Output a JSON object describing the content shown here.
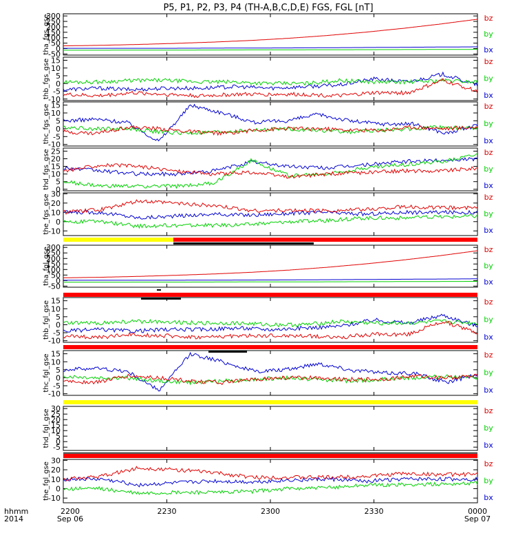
{
  "title": "P5, P1, P2, P3, P4 (TH-A,B,C,D,E) FGS, FGL [nT]",
  "colors": {
    "bz": "#e00000",
    "by": "#00d000",
    "bx": "#0000d0",
    "axis": "#000000",
    "yellow": "#ffff00",
    "red": "#ff0000"
  },
  "legend": [
    "bz",
    "by",
    "bx"
  ],
  "x_axis": {
    "ticks": [
      {
        "top": "2200",
        "bottom": "Sep 06"
      },
      {
        "top": "2230",
        "bottom": ""
      },
      {
        "top": "2300",
        "bottom": ""
      },
      {
        "top": "2330",
        "bottom": ""
      },
      {
        "top": "0000",
        "bottom": "Sep 07"
      }
    ],
    "left_label_top": "hhmm",
    "left_label_bottom": "2014"
  },
  "chart_data": [
    {
      "type": "line",
      "ylabel": "tha_fgs_gse",
      "ticks": [
        300,
        250,
        200,
        150,
        100,
        50,
        0,
        -50
      ],
      "ylim": [
        -60,
        320
      ],
      "series": [
        {
          "name": "bx",
          "values": [
            3,
            3,
            3,
            3,
            4,
            5,
            6,
            8,
            10,
            12,
            14,
            16
          ]
        },
        {
          "name": "by",
          "values": [
            -15,
            -15,
            -14,
            -14,
            -13,
            -12,
            -12,
            -11,
            -10,
            -9,
            -8,
            -7
          ]
        },
        {
          "name": "bz",
          "values": [
            25,
            30,
            38,
            48,
            60,
            75,
            95,
            120,
            150,
            185,
            225,
            270
          ]
        }
      ]
    },
    {
      "type": "line",
      "ylabel": "thb_fgs_gse",
      "ticks": [
        15,
        10,
        5,
        0,
        -5,
        -10
      ],
      "ylim": [
        -11,
        17
      ],
      "series": [
        {
          "name": "bx",
          "values": [
            -4,
            -3,
            -4,
            -3,
            -3,
            -2,
            -3,
            -2,
            -1,
            3,
            1,
            6,
            -1
          ]
        },
        {
          "name": "by",
          "values": [
            1,
            1,
            2,
            2,
            1,
            1,
            0,
            0,
            2,
            1,
            1,
            2,
            1
          ]
        },
        {
          "name": "bz",
          "values": [
            -7,
            -8,
            -6,
            -7,
            -8,
            -7,
            -7,
            -7,
            -8,
            -6,
            -6,
            2,
            -5
          ]
        }
      ]
    },
    {
      "type": "line",
      "ylabel": "thc_fgs_gse",
      "ticks": [
        15,
        10,
        5,
        0,
        -5,
        -10
      ],
      "ylim": [
        -11,
        17
      ],
      "series": [
        {
          "name": "bx",
          "values": [
            5,
            6,
            4,
            -8,
            15,
            10,
            4,
            5,
            9,
            5,
            3,
            3,
            -3,
            2
          ]
        },
        {
          "name": "by",
          "values": [
            1,
            0,
            0,
            -2,
            -3,
            -2,
            -1,
            0,
            -1,
            -2,
            -1,
            0,
            1,
            0
          ]
        },
        {
          "name": "bz",
          "values": [
            -2,
            -3,
            1,
            0,
            -2,
            -3,
            -1,
            0,
            0,
            -1,
            -1,
            1,
            0,
            1
          ]
        }
      ]
    },
    {
      "type": "line",
      "ylabel": "thd_fgs_gse",
      "ticks": [
        25,
        20,
        15,
        10,
        5,
        0
      ],
      "ylim": [
        -1,
        27
      ],
      "series": [
        {
          "name": "bx",
          "values": [
            14,
            12,
            10,
            10,
            12,
            18,
            15,
            14,
            16,
            18,
            19,
            20
          ]
        },
        {
          "name": "by",
          "values": [
            5,
            2,
            2,
            2,
            4,
            19,
            9,
            10,
            14,
            16,
            18,
            23
          ]
        },
        {
          "name": "bz",
          "values": [
            12,
            16,
            15,
            12,
            10,
            11,
            8,
            10,
            11,
            12,
            12,
            14
          ]
        }
      ]
    },
    {
      "type": "line",
      "ylabel": "the_fgs_gse",
      "ticks": [
        30,
        20,
        10,
        0,
        -10
      ],
      "ylim": [
        -15,
        31
      ],
      "series": [
        {
          "name": "bx",
          "values": [
            10,
            10,
            4,
            6,
            8,
            7,
            9,
            10,
            8,
            10,
            10,
            10
          ]
        },
        {
          "name": "by",
          "values": [
            0,
            0,
            -5,
            -4,
            -4,
            -3,
            0,
            1,
            4,
            4,
            5,
            6
          ]
        },
        {
          "name": "bz",
          "values": [
            10,
            13,
            22,
            20,
            17,
            12,
            12,
            12,
            13,
            16,
            15,
            15
          ]
        }
      ]
    },
    {
      "type": "line",
      "ylabel": "tha_fgl_gse",
      "ticks": [
        300,
        250,
        200,
        150,
        100,
        50,
        0,
        -50
      ],
      "ylim": [
        -60,
        320
      ],
      "series": [
        {
          "name": "bx",
          "values": [
            3,
            3,
            3,
            3,
            4,
            5,
            6,
            8,
            10,
            12,
            14,
            16
          ]
        },
        {
          "name": "by",
          "values": [
            -15,
            -15,
            -14,
            -14,
            -13,
            -12,
            -12,
            -11,
            -10,
            -9,
            -8,
            -7
          ]
        },
        {
          "name": "bz",
          "values": [
            25,
            30,
            38,
            48,
            60,
            75,
            95,
            120,
            150,
            185,
            225,
            270
          ]
        }
      ]
    },
    {
      "type": "line",
      "ylabel": "thb_fgl_gse",
      "ticks": [
        15,
        10,
        5,
        0,
        -5,
        -10
      ],
      "ylim": [
        -11,
        17
      ],
      "series": [
        {
          "name": "bx",
          "values": [
            -4,
            -3,
            -4,
            -3,
            -3,
            -2,
            -3,
            -2,
            -1,
            3,
            1,
            6,
            -1
          ]
        },
        {
          "name": "by",
          "values": [
            1,
            1,
            2,
            2,
            1,
            1,
            0,
            0,
            2,
            1,
            1,
            2,
            1
          ]
        },
        {
          "name": "bz",
          "values": [
            -7,
            -8,
            -6,
            -7,
            -8,
            -7,
            -7,
            -7,
            -8,
            -6,
            -6,
            2,
            -5
          ]
        }
      ]
    },
    {
      "type": "line",
      "ylabel": "thc_fgl_gse",
      "ticks": [
        15,
        10,
        5,
        0,
        -5,
        -10
      ],
      "ylim": [
        -11,
        17
      ],
      "series": [
        {
          "name": "bx",
          "values": [
            5,
            6,
            4,
            -8,
            15,
            10,
            4,
            5,
            9,
            5,
            3,
            3,
            -3,
            2
          ]
        },
        {
          "name": "by",
          "values": [
            1,
            0,
            0,
            -2,
            -3,
            -2,
            -1,
            0,
            -1,
            -2,
            -1,
            0,
            1,
            0
          ]
        },
        {
          "name": "bz",
          "values": [
            -2,
            -3,
            1,
            0,
            -2,
            -3,
            -1,
            0,
            0,
            -1,
            -1,
            1,
            0,
            1
          ]
        }
      ]
    },
    {
      "type": "line",
      "ylabel": "thd_fgl_gse",
      "ticks": [
        30,
        25,
        20,
        15,
        10,
        5,
        0,
        -5
      ],
      "ylim": [
        -8,
        32
      ],
      "series": []
    },
    {
      "type": "line",
      "ylabel": "the_fgl_gse",
      "ticks": [
        30,
        20,
        10,
        0,
        -10
      ],
      "ylim": [
        -15,
        31
      ],
      "series": [
        {
          "name": "bx",
          "values": [
            10,
            10,
            4,
            6,
            8,
            7,
            9,
            10,
            8,
            10,
            10,
            10
          ]
        },
        {
          "name": "by",
          "values": [
            0,
            0,
            -5,
            -4,
            -4,
            -3,
            0,
            1,
            4,
            4,
            5,
            6
          ]
        },
        {
          "name": "bz",
          "values": [
            10,
            13,
            22,
            20,
            17,
            12,
            12,
            12,
            13,
            16,
            15,
            15
          ]
        }
      ]
    }
  ]
}
